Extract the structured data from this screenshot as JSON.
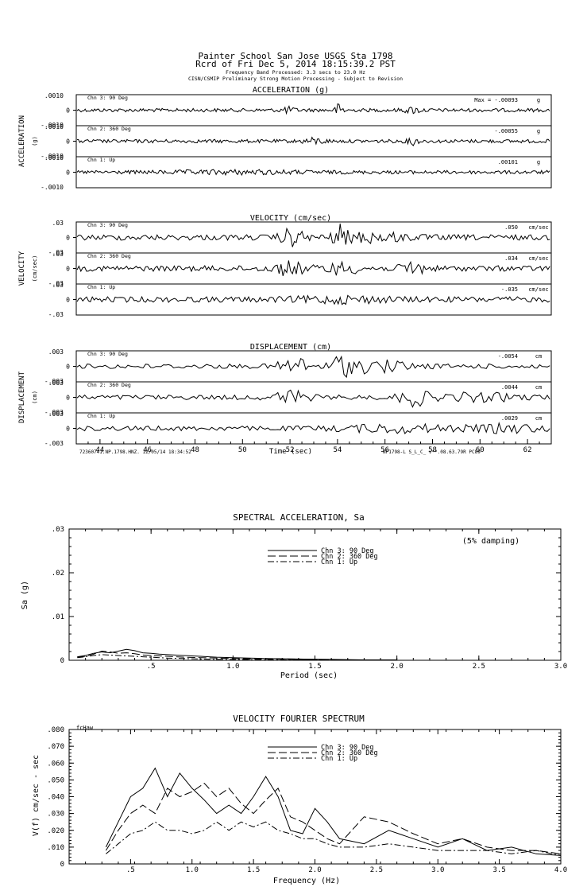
{
  "header": {
    "line1": "Painter School San Jose    USGS Sta 1798",
    "line2": "Rcrd of Fri Dec  5, 2014 18:15:39.2 PST",
    "line3": "Frequency Band Processed: 3.3 secs to 23.0 Hz",
    "line4": "CISN/CSMIP Preliminary Strong Motion Processing - Subject to Revision"
  },
  "time_series": {
    "x_ticks": [
      "44",
      "46",
      "48",
      "50",
      "52",
      "54",
      "56",
      "58",
      "60",
      "62"
    ],
    "x_label": "Time (sec)",
    "footer_left": "72360741.NP.1798.HNZ. 12/05/14 18:34:52",
    "footer_right": "NP1798-L  S_L_C_  v**.08.63.79R PC89",
    "panels": [
      {
        "key": "acc",
        "title": "ACCELERATION (g)",
        "side_label": "ACCELERATION",
        "unit_label": "(g)",
        "channels": [
          {
            "name": "Chn 3: 90 Deg",
            "top": ".0010",
            "mid": "0",
            "bot": "-.0010",
            "peak": "Max =   -.00093",
            "unit": "g"
          },
          {
            "name": "Chn 2: 360 Deg",
            "top": ".0010",
            "mid": "0",
            "bot": "-.0010",
            "peak": "-.00055",
            "unit": "g"
          },
          {
            "name": "Chn 1: Up",
            "top": ".0010",
            "mid": "0",
            "bot": "-.0010",
            "peak": ".00101",
            "unit": "g"
          }
        ]
      },
      {
        "key": "vel",
        "title": "VELOCITY (cm/sec)",
        "side_label": "VELOCITY",
        "unit_label": "(cm/sec)",
        "channels": [
          {
            "name": "Chn 3: 90 Deg",
            "top": ".03",
            "mid": "0",
            "bot": "-.03",
            "peak": ".050",
            "unit": "cm/sec"
          },
          {
            "name": "Chn 2: 360 Deg",
            "top": ".03",
            "mid": "0",
            "bot": "-.03",
            "peak": ".034",
            "unit": "cm/sec"
          },
          {
            "name": "Chn 1: Up",
            "top": ".03",
            "mid": "0",
            "bot": "-.03",
            "peak": "-.035",
            "unit": "cm/sec"
          }
        ]
      },
      {
        "key": "dis",
        "title": "DISPLACEMENT (cm)",
        "side_label": "DISPLACEMENT",
        "unit_label": "(cm)",
        "channels": [
          {
            "name": "Chn 3: 90 Deg",
            "top": ".003",
            "mid": "0",
            "bot": "-.003",
            "peak": "-.0054",
            "unit": "cm"
          },
          {
            "name": "Chn 2: 360 Deg",
            "top": ".003",
            "mid": "0",
            "bot": "-.003",
            "peak": ".0044",
            "unit": "cm"
          },
          {
            "name": "Chn 1: Up",
            "top": ".003",
            "mid": "0",
            "bot": "-.003",
            "peak": ".0029",
            "unit": "cm"
          }
        ]
      }
    ]
  },
  "chart_data": [
    {
      "type": "line",
      "title": "SPECTRAL ACCELERATION, Sa",
      "xlabel": "Period (sec)",
      "ylabel": "Sa (g)",
      "annotation": "(5% damping)",
      "xlim": [
        0,
        3.0
      ],
      "ylim": [
        0,
        0.03
      ],
      "x_tick_labels": [
        ".5",
        "1.0",
        "1.5",
        "2.0",
        "2.5",
        "3.0"
      ],
      "y_tick_labels": [
        ".03",
        ".02",
        ".01",
        "0"
      ],
      "legend": [
        "Chn 3: 90 Deg",
        "Chn 2: 360 Deg",
        "Chn 1: Up"
      ],
      "series": [
        {
          "name": "Chn 3: 90 Deg",
          "x": [
            0.05,
            0.1,
            0.15,
            0.2,
            0.25,
            0.3,
            0.35,
            0.4,
            0.45,
            0.5,
            0.55,
            0.6,
            0.7,
            0.8,
            0.9,
            1.0,
            1.2,
            1.4,
            1.6,
            1.8,
            2.0
          ],
          "values": [
            0.0008,
            0.0011,
            0.0016,
            0.0019,
            0.0017,
            0.0021,
            0.0025,
            0.0022,
            0.0017,
            0.0016,
            0.0014,
            0.0013,
            0.0011,
            0.0009,
            0.0007,
            0.0006,
            0.0004,
            0.0003,
            0.0002,
            0.0001,
            0.0001
          ]
        },
        {
          "name": "Chn 2: 360 Deg",
          "x": [
            0.05,
            0.1,
            0.15,
            0.2,
            0.25,
            0.3,
            0.35,
            0.4,
            0.45,
            0.5,
            0.55,
            0.6,
            0.7,
            0.8,
            0.9,
            1.0,
            1.2,
            1.4,
            1.6,
            1.8,
            2.0
          ],
          "values": [
            0.0007,
            0.0009,
            0.0014,
            0.0021,
            0.0019,
            0.0016,
            0.0017,
            0.0015,
            0.0012,
            0.0011,
            0.001,
            0.0009,
            0.0007,
            0.0006,
            0.0005,
            0.0004,
            0.0003,
            0.0002,
            0.0001,
            0.0001,
            0.0001
          ]
        },
        {
          "name": "Chn 1: Up",
          "x": [
            0.05,
            0.1,
            0.15,
            0.2,
            0.25,
            0.3,
            0.35,
            0.4,
            0.45,
            0.5,
            0.55,
            0.6,
            0.7,
            0.8,
            0.9,
            1.0,
            1.2,
            1.4,
            1.6,
            1.8,
            2.0
          ],
          "values": [
            0.0006,
            0.0008,
            0.0011,
            0.0013,
            0.0012,
            0.0011,
            0.001,
            0.0009,
            0.0008,
            0.0007,
            0.0006,
            0.0005,
            0.0004,
            0.0003,
            0.0002,
            0.0002,
            0.0001,
            0.0001,
            0.0001,
            0.0,
            0.0
          ]
        }
      ]
    },
    {
      "type": "line",
      "title": "VELOCITY FOURIER SPECTRUM",
      "xlabel": "Frequency (Hz)",
      "ylabel": "V(f)   cm/sec - sec",
      "annotation": "fcHaw",
      "xlim": [
        0,
        4.0
      ],
      "ylim": [
        0,
        0.08
      ],
      "x_tick_labels": [
        ".5",
        "1.0",
        "1.5",
        "2.0",
        "2.5",
        "3.0",
        "3.5",
        "4.0"
      ],
      "y_tick_labels": [
        ".080",
        ".070",
        ".060",
        ".050",
        ".040",
        ".030",
        ".020",
        ".010",
        "0"
      ],
      "legend": [
        "Chn 3: 90 Deg",
        "Chn 2: 360 Deg",
        "Chn 1: Up"
      ],
      "series": [
        {
          "name": "Chn 3: 90 Deg",
          "x": [
            0.3,
            0.4,
            0.5,
            0.6,
            0.7,
            0.8,
            0.9,
            1.0,
            1.1,
            1.2,
            1.3,
            1.4,
            1.5,
            1.6,
            1.7,
            1.8,
            1.9,
            2.0,
            2.1,
            2.2,
            2.4,
            2.6,
            2.8,
            3.0,
            3.2,
            3.4,
            3.6,
            3.8,
            4.0
          ],
          "values": [
            0.01,
            0.025,
            0.04,
            0.045,
            0.057,
            0.04,
            0.054,
            0.045,
            0.038,
            0.03,
            0.035,
            0.03,
            0.04,
            0.052,
            0.04,
            0.02,
            0.018,
            0.033,
            0.025,
            0.015,
            0.012,
            0.02,
            0.015,
            0.01,
            0.015,
            0.008,
            0.01,
            0.006,
            0.005
          ]
        },
        {
          "name": "Chn 2: 360 Deg",
          "x": [
            0.3,
            0.4,
            0.5,
            0.6,
            0.7,
            0.8,
            0.9,
            1.0,
            1.1,
            1.2,
            1.3,
            1.4,
            1.5,
            1.6,
            1.7,
            1.8,
            1.9,
            2.0,
            2.1,
            2.2,
            2.4,
            2.6,
            2.8,
            3.0,
            3.2,
            3.4,
            3.6,
            3.8,
            4.0
          ],
          "values": [
            0.008,
            0.02,
            0.03,
            0.035,
            0.03,
            0.045,
            0.04,
            0.043,
            0.048,
            0.04,
            0.045,
            0.036,
            0.03,
            0.038,
            0.045,
            0.028,
            0.025,
            0.02,
            0.015,
            0.012,
            0.028,
            0.025,
            0.018,
            0.012,
            0.015,
            0.01,
            0.008,
            0.008,
            0.006
          ]
        },
        {
          "name": "Chn 1: Up",
          "x": [
            0.3,
            0.4,
            0.5,
            0.6,
            0.7,
            0.8,
            0.9,
            1.0,
            1.1,
            1.2,
            1.3,
            1.4,
            1.5,
            1.6,
            1.7,
            1.8,
            1.9,
            2.0,
            2.1,
            2.2,
            2.4,
            2.6,
            2.8,
            3.0,
            3.2,
            3.4,
            3.6,
            3.8,
            4.0
          ],
          "values": [
            0.006,
            0.012,
            0.018,
            0.02,
            0.025,
            0.02,
            0.02,
            0.018,
            0.02,
            0.025,
            0.02,
            0.025,
            0.022,
            0.025,
            0.02,
            0.018,
            0.015,
            0.015,
            0.012,
            0.01,
            0.01,
            0.012,
            0.01,
            0.008,
            0.008,
            0.008,
            0.006,
            0.008,
            0.005
          ]
        }
      ]
    }
  ]
}
